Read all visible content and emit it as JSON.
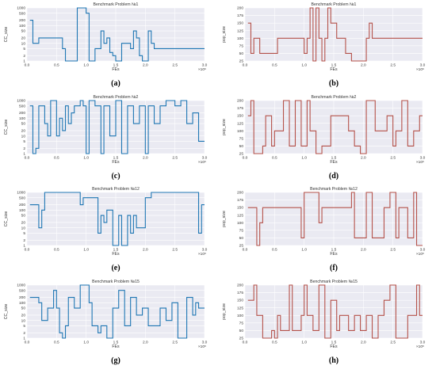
{
  "chart_data": [
    {
      "id": "a",
      "caption": "(a)",
      "type": "line",
      "step": true,
      "title": "Benchmark Problem №1",
      "xlabel": "FEs",
      "ylabel": "CC_size",
      "x_multiplier": "×10⁶",
      "xlim": [
        0,
        3.0
      ],
      "xticks": [
        "0.0",
        "0.5",
        "1.0",
        "1.5",
        "2.0",
        "2.5",
        "3.0"
      ],
      "yscale": "log",
      "ylim": [
        1,
        1000
      ],
      "yticks": [
        "1",
        "2",
        "5",
        "10",
        "20",
        "50",
        "100",
        "200",
        "500",
        "1000"
      ],
      "color": "#1f77b4",
      "series": [
        {
          "x": [
            0.05,
            0.1,
            0.2,
            0.25,
            0.6,
            0.65,
            0.7,
            0.85,
            1.0,
            1.05,
            1.15,
            1.25,
            1.3,
            1.35,
            1.4,
            1.45,
            1.5,
            1.55,
            1.6,
            1.75,
            1.8,
            1.85,
            1.9,
            1.95,
            2.05,
            2.1,
            2.15,
            3.0
          ],
          "y": [
            200,
            10,
            20,
            20,
            5,
            1,
            1,
            1000,
            500,
            1,
            5,
            50,
            10,
            20,
            3,
            2,
            1,
            1,
            10,
            5,
            50,
            20,
            2,
            1,
            50,
            10,
            5,
            5
          ]
        }
      ]
    },
    {
      "id": "b",
      "caption": "(b)",
      "type": "line",
      "step": true,
      "title": "Benchmark Problem №1",
      "xlabel": "FEs",
      "ylabel": "pop_size",
      "x_multiplier": "×10⁶",
      "xlim": [
        0,
        3.0
      ],
      "xticks": [
        "0.0",
        "0.5",
        "1.0",
        "1.5",
        "2.0",
        "2.5",
        "3.0"
      ],
      "yscale": "linear",
      "ylim": [
        25,
        200
      ],
      "yticks": [
        "25",
        "50",
        "75",
        "100",
        "125",
        "150",
        "175",
        "200"
      ],
      "color": "#b5524a",
      "series": [
        {
          "x": [
            0.05,
            0.1,
            0.15,
            0.25,
            0.55,
            1.0,
            1.05,
            1.1,
            1.15,
            1.2,
            1.25,
            1.3,
            1.35,
            1.4,
            1.45,
            1.55,
            1.7,
            1.8,
            2.05,
            2.1,
            2.15,
            3.0
          ],
          "y": [
            150,
            50,
            100,
            50,
            100,
            50,
            100,
            200,
            25,
            200,
            100,
            25,
            100,
            200,
            150,
            100,
            50,
            25,
            100,
            150,
            100,
            100
          ]
        }
      ]
    },
    {
      "id": "c",
      "caption": "(c)",
      "type": "line",
      "step": true,
      "title": "Benchmark Problem №2",
      "xlabel": "FEs",
      "ylabel": "CC_size",
      "x_multiplier": "×10⁶",
      "xlim": [
        0,
        3.0
      ],
      "xticks": [
        "0.0",
        "0.5",
        "1.0",
        "1.5",
        "2.0",
        "2.5",
        "3.0"
      ],
      "yscale": "log",
      "ylim": [
        1,
        1000
      ],
      "yticks": [
        "1",
        "2",
        "5",
        "10",
        "20",
        "50",
        "100",
        "200",
        "500",
        "1000"
      ],
      "color": "#1f77b4",
      "series": [
        {
          "x": [
            0.05,
            0.1,
            0.15,
            0.2,
            0.3,
            0.35,
            0.4,
            0.5,
            0.55,
            0.6,
            0.65,
            0.7,
            0.75,
            0.8,
            0.9,
            0.95,
            1.0,
            1.05,
            1.15,
            1.25,
            1.3,
            1.4,
            1.5,
            1.6,
            1.7,
            1.8,
            1.9,
            2.0,
            2.05,
            2.15,
            2.25,
            2.35,
            2.5,
            2.6,
            2.7,
            2.8,
            2.9,
            3.0
          ],
          "y": [
            500,
            1,
            2,
            500,
            50,
            10,
            1000,
            10,
            100,
            20,
            500,
            50,
            200,
            500,
            1000,
            500,
            1,
            1000,
            500,
            1,
            500,
            10,
            1000,
            1,
            500,
            50,
            500,
            1,
            500,
            50,
            500,
            1000,
            500,
            1000,
            50,
            200,
            5,
            5
          ]
        }
      ]
    },
    {
      "id": "d",
      "caption": "(d)",
      "type": "line",
      "step": true,
      "title": "Benchmark Problem №2",
      "xlabel": "FEs",
      "ylabel": "pop_size",
      "x_multiplier": "×10⁶",
      "xlim": [
        0,
        3.0
      ],
      "xticks": [
        "0.0",
        "0.5",
        "1.0",
        "1.5",
        "2.0",
        "2.5",
        "3.0"
      ],
      "yscale": "linear",
      "ylim": [
        25,
        200
      ],
      "yticks": [
        "25",
        "50",
        "75",
        "100",
        "125",
        "150",
        "175",
        "200"
      ],
      "color": "#b5524a",
      "series": [
        {
          "x": [
            0.05,
            0.1,
            0.15,
            0.3,
            0.35,
            0.45,
            0.5,
            0.65,
            0.75,
            0.85,
            0.95,
            1.05,
            1.1,
            1.2,
            1.3,
            1.45,
            1.75,
            1.85,
            1.95,
            2.05,
            2.15,
            2.2,
            2.4,
            2.5,
            2.55,
            2.65,
            2.75,
            2.85,
            2.95,
            3.0
          ],
          "y": [
            150,
            200,
            25,
            50,
            150,
            50,
            100,
            200,
            50,
            200,
            50,
            200,
            100,
            25,
            50,
            150,
            100,
            50,
            25,
            200,
            200,
            100,
            150,
            50,
            100,
            200,
            50,
            100,
            150,
            150
          ]
        }
      ]
    },
    {
      "id": "e",
      "caption": "(e)",
      "type": "line",
      "step": true,
      "title": "Benchmark Problem №12",
      "xlabel": "FEs",
      "ylabel": "CC_size",
      "x_multiplier": "×10⁶",
      "xlim": [
        0,
        3.0
      ],
      "xticks": [
        "0.0",
        "0.5",
        "1.0",
        "1.5",
        "2.0",
        "2.5",
        "3.0"
      ],
      "yscale": "log",
      "ylim": [
        1,
        1000
      ],
      "yticks": [
        "1",
        "2",
        "5",
        "10",
        "20",
        "50",
        "100",
        "200",
        "500",
        "1000"
      ],
      "color": "#1f77b4",
      "series": [
        {
          "x": [
            0.05,
            0.2,
            0.25,
            0.3,
            0.9,
            0.95,
            1.2,
            1.25,
            1.3,
            1.35,
            1.45,
            1.55,
            1.6,
            1.7,
            1.75,
            1.8,
            1.85,
            2.0,
            2.1,
            2.5,
            2.9,
            2.95,
            3.0
          ],
          "y": [
            200,
            10,
            100,
            1000,
            200,
            500,
            5,
            50,
            20,
            100,
            1,
            50,
            1,
            50,
            5,
            50,
            10,
            500,
            1000,
            1000,
            5,
            200,
            200
          ]
        }
      ]
    },
    {
      "id": "f",
      "caption": "(f)",
      "type": "line",
      "step": true,
      "title": "Benchmark Problem №12",
      "xlabel": "FEs",
      "ylabel": "pop_size",
      "x_multiplier": "×10⁶",
      "xlim": [
        0,
        3.0
      ],
      "xticks": [
        "0.0",
        "0.5",
        "1.0",
        "1.5",
        "2.0",
        "2.5",
        "3.0"
      ],
      "yscale": "linear",
      "ylim": [
        25,
        200
      ],
      "yticks": [
        "25",
        "50",
        "75",
        "100",
        "125",
        "150",
        "175",
        "200"
      ],
      "color": "#b5524a",
      "series": [
        {
          "x": [
            0.05,
            0.2,
            0.25,
            0.3,
            0.95,
            1.0,
            1.25,
            1.3,
            1.8,
            1.85,
            2.05,
            2.15,
            2.35,
            2.45,
            2.55,
            2.6,
            2.75,
            2.85,
            2.9,
            2.95,
            3.0
          ],
          "y": [
            150,
            25,
            100,
            150,
            50,
            200,
            100,
            150,
            200,
            50,
            200,
            50,
            150,
            200,
            50,
            150,
            50,
            200,
            25,
            25,
            25
          ]
        }
      ]
    },
    {
      "id": "g",
      "caption": "(g)",
      "type": "line",
      "step": true,
      "title": "Benchmark Problem №15",
      "xlabel": "FEs",
      "ylabel": "CC_size",
      "x_multiplier": "×10⁶",
      "xlim": [
        0,
        3.0
      ],
      "xticks": [
        "0.0",
        "0.5",
        "1.0",
        "1.5",
        "2.0",
        "2.5",
        "3.0"
      ],
      "yscale": "log",
      "ylim": [
        1,
        1000
      ],
      "yticks": [
        "1",
        "2",
        "5",
        "10",
        "20",
        "50",
        "100",
        "200",
        "500",
        "1000"
      ],
      "color": "#1f77b4",
      "series": [
        {
          "x": [
            0.05,
            0.2,
            0.25,
            0.35,
            0.45,
            0.5,
            0.55,
            0.6,
            0.65,
            0.7,
            0.8,
            0.9,
            1.05,
            1.1,
            1.2,
            1.25,
            1.35,
            1.45,
            1.55,
            1.65,
            1.75,
            1.85,
            1.95,
            2.05,
            2.15,
            2.25,
            2.35,
            2.45,
            2.55,
            2.7,
            2.8,
            2.85,
            2.9,
            3.0
          ],
          "y": [
            200,
            100,
            10,
            50,
            500,
            50,
            2,
            1,
            5,
            200,
            50,
            1000,
            100,
            5,
            2,
            5,
            1,
            50,
            500,
            5,
            200,
            20,
            50,
            5,
            5,
            50,
            10,
            100,
            1,
            200,
            20,
            100,
            50,
            50
          ]
        }
      ]
    },
    {
      "id": "h",
      "caption": "(h)",
      "type": "line",
      "step": true,
      "title": "Benchmark Problem №15",
      "xlabel": "FEs",
      "ylabel": "pop_size",
      "x_multiplier": "×10⁶",
      "xlim": [
        0,
        3.0
      ],
      "xticks": [
        "0.0",
        "0.5",
        "1.0",
        "1.5",
        "2.0",
        "2.5",
        "3.0"
      ],
      "yscale": "linear",
      "ylim": [
        25,
        200
      ],
      "yticks": [
        "25",
        "50",
        "75",
        "100",
        "125",
        "150",
        "175",
        "200"
      ],
      "color": "#b5524a",
      "series": [
        {
          "x": [
            0.05,
            0.15,
            0.2,
            0.3,
            0.45,
            0.5,
            0.55,
            0.6,
            0.75,
            0.8,
            0.95,
            1.0,
            1.05,
            1.15,
            1.25,
            1.35,
            1.45,
            1.55,
            1.6,
            1.75,
            1.85,
            1.95,
            2.05,
            2.15,
            2.25,
            2.35,
            2.45,
            2.55,
            2.75,
            2.9,
            2.95,
            3.0
          ],
          "y": [
            150,
            200,
            100,
            25,
            50,
            25,
            100,
            50,
            200,
            50,
            100,
            200,
            100,
            50,
            200,
            25,
            150,
            50,
            100,
            50,
            100,
            50,
            100,
            25,
            100,
            150,
            200,
            25,
            100,
            200,
            100,
            100
          ]
        }
      ]
    }
  ]
}
